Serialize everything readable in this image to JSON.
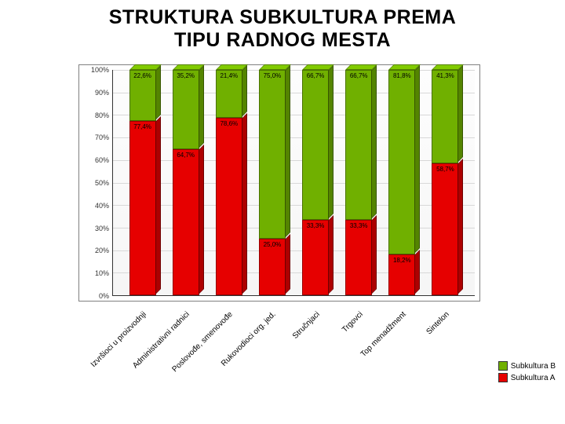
{
  "title_line1": "STRUKTURA SUBKULTURA PREMA",
  "title_line2": "TIPU RADNOG MESTA",
  "chart": {
    "type": "stacked-bar-3d-100pct",
    "colors": {
      "seriesA": "#e60000",
      "seriesB": "#70b000",
      "border": "#333333",
      "grid": "#d8d8d8",
      "background": "#ffffff"
    },
    "yaxis": {
      "min": 0,
      "max": 100,
      "ticks": [
        0,
        10,
        20,
        30,
        40,
        50,
        60,
        70,
        80,
        90,
        100
      ],
      "tick_labels": [
        "0%",
        "10%",
        "20%",
        "30%",
        "40%",
        "50%",
        "60%",
        "70%",
        "80%",
        "90%",
        "100%"
      ],
      "label_fontsize": 9
    },
    "categories": [
      "Izvršioci u proizvodnji",
      "Administrativni radnici",
      "Poslovođe, smenovođe",
      "Rukovodioci org. jed.",
      "Stručnjaci",
      "Trgovci",
      "Top menadžment",
      "Sintelon"
    ],
    "seriesA_values": [
      77.4,
      64.7,
      78.6,
      25.0,
      33.3,
      33.3,
      18.2,
      58.7
    ],
    "seriesB_values": [
      22.6,
      35.2,
      21.4,
      75.0,
      66.7,
      66.7,
      81.8,
      41.3
    ],
    "labelsA": [
      "77,4%",
      "64,7%",
      "78,6%",
      "25,0%",
      "33,3%",
      "33,3%",
      "18,2%",
      "58,7%"
    ],
    "labelsB": [
      "22,6%",
      "35,2%",
      "21,4%",
      "75,0%",
      "66,7%",
      "66,7%",
      "81,8%",
      "41,3%"
    ],
    "xlabel_fontsize": 10,
    "value_label_fontsize": 8
  },
  "legend": {
    "items": [
      {
        "label": "Subkultura B",
        "color": "#70b000"
      },
      {
        "label": "Subkultura A",
        "color": "#e60000"
      }
    ],
    "fontsize": 10
  }
}
